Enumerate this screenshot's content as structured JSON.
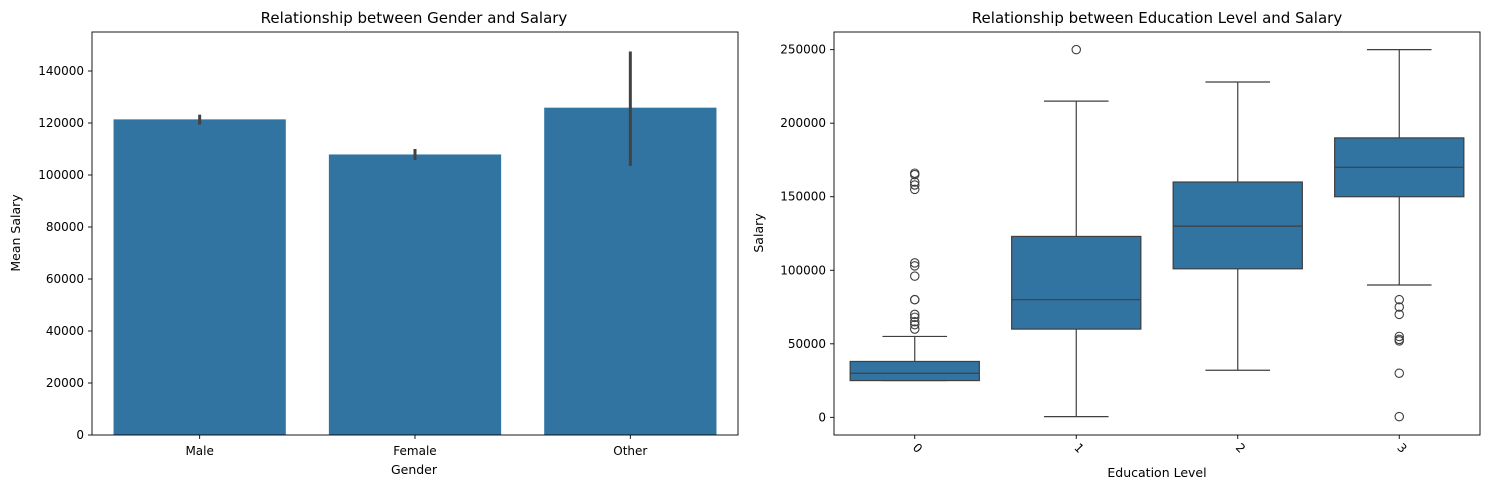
{
  "chart_data": [
    {
      "type": "bar",
      "title": "Relationship between Gender and Salary",
      "xlabel": "Gender",
      "ylabel": "Mean Salary",
      "categories": [
        "Male",
        "Female",
        "Other"
      ],
      "values": [
        121400,
        107900,
        125900
      ],
      "error_bars": [
        {
          "low": 119400,
          "high": 123200
        },
        {
          "low": 105800,
          "high": 110000
        },
        {
          "low": 103500,
          "high": 147500
        }
      ],
      "ylim": [
        0,
        155000
      ],
      "yticks": [
        "0",
        "20000",
        "40000",
        "60000",
        "80000",
        "100000",
        "120000",
        "140000"
      ],
      "ytick_values": [
        0,
        20000,
        40000,
        60000,
        80000,
        100000,
        120000,
        140000
      ],
      "bar_color": "#3274a1",
      "error_color": "#424242",
      "grid": false
    },
    {
      "type": "box",
      "title": "Relationship between Education Level and Salary",
      "xlabel": "Education Level",
      "ylabel": "Salary",
      "categories": [
        "0",
        "1",
        "2",
        "3"
      ],
      "boxes": [
        {
          "whisker_low": 25000,
          "q1": 25000,
          "median": 30000,
          "q3": 38000,
          "whisker_high": 55000,
          "outliers": [
            60000,
            63000,
            65000,
            68000,
            70000,
            80000,
            80000,
            96000,
            103000,
            105000,
            155000,
            158000,
            160000,
            165000,
            166000
          ]
        },
        {
          "whisker_low": 500,
          "q1": 60000,
          "median": 80000,
          "q3": 123000,
          "whisker_high": 215000,
          "outliers": [
            250000
          ]
        },
        {
          "whisker_low": 32000,
          "q1": 101000,
          "median": 130000,
          "q3": 160000,
          "whisker_high": 228000,
          "outliers": []
        },
        {
          "whisker_low": 90000,
          "q1": 150000,
          "median": 170000,
          "q3": 190000,
          "whisker_high": 250000,
          "outliers": [
            500,
            30000,
            52000,
            53000,
            55000,
            70000,
            75000,
            80000
          ]
        }
      ],
      "ylim": [
        -12000,
        262000
      ],
      "yticks": [
        "0",
        "50000",
        "100000",
        "150000",
        "200000",
        "250000"
      ],
      "ytick_values": [
        0,
        50000,
        100000,
        150000,
        200000,
        250000
      ],
      "xtick_rotation": 45,
      "box_color": "#3274a1",
      "line_color": "#3f3f3f",
      "grid": false
    }
  ]
}
